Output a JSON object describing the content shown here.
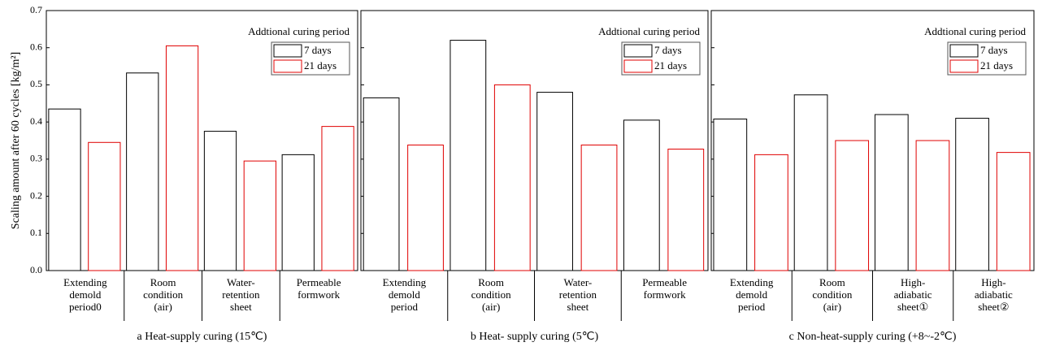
{
  "chart_data": [
    {
      "type": "bar",
      "caption": "a Heat-supply curing (15℃)",
      "ylabel": "Scaling amount after 60 cycles [kg/m²]",
      "legend_title": "Addtional curing period",
      "legend": "upper right",
      "categories": [
        "Extending\ndemold\nperiod0",
        "Room\ncondition\n(air)",
        "Water-\nretention\nsheet",
        "Permeable\nformwork"
      ],
      "series": [
        {
          "name": "7 days",
          "color": "#000000",
          "values": [
            0.435,
            0.532,
            0.375,
            0.312
          ]
        },
        {
          "name": "21 days",
          "color": "#e00000",
          "values": [
            0.345,
            0.605,
            0.295,
            0.388
          ]
        }
      ],
      "ylim": [
        0,
        0.7
      ],
      "yticks": [
        {
          "value": 0,
          "label": "0.0"
        },
        0.1,
        0.2,
        0.3,
        0.4,
        0.5,
        0.6,
        0.7
      ]
    },
    {
      "type": "bar",
      "caption": "b Heat- supply curing (5℃)",
      "legend_title": "Addtional curing period",
      "legend": "upper right",
      "categories": [
        "Extending\ndemold\nperiod",
        "Room\ncondition\n(air)",
        "Water-\nretention\nsheet",
        "Permeable\nformwork"
      ],
      "series": [
        {
          "name": "7 days",
          "color": "#000000",
          "values": [
            0.465,
            0.62,
            0.48,
            0.405
          ]
        },
        {
          "name": "21 days",
          "color": "#e00000",
          "values": [
            0.338,
            0.5,
            0.338,
            0.327
          ]
        }
      ],
      "ylim": [
        0,
        0.7
      ]
    },
    {
      "type": "bar",
      "caption": "c Non-heat-supply curing (+8~-2℃)",
      "legend_title": "Addtional curing period",
      "legend": "upper right",
      "categories": [
        "Extending\ndemold\nperiod",
        "Room\ncondition\n(air)",
        "High-\nadiabatic\nsheet①",
        "High-\nadiabatic\nsheet②"
      ],
      "series": [
        {
          "name": "7 days",
          "color": "#000000",
          "values": [
            0.408,
            0.473,
            0.42,
            0.41
          ]
        },
        {
          "name": "21 days",
          "color": "#e00000",
          "values": [
            0.312,
            0.35,
            0.35,
            0.318
          ]
        }
      ],
      "ylim": [
        0,
        0.7
      ]
    }
  ]
}
